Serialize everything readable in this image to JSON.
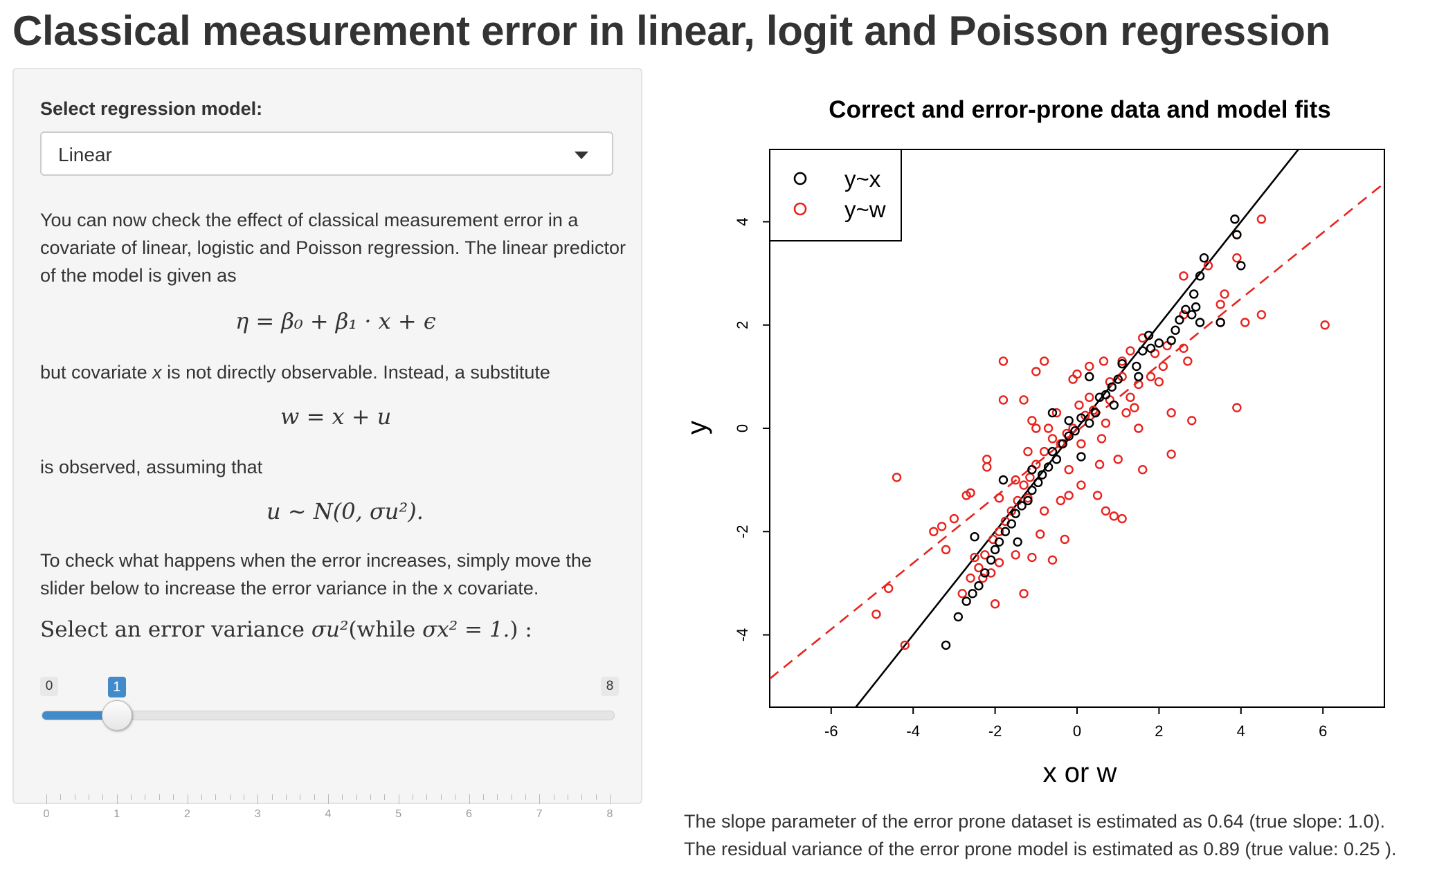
{
  "page": {
    "title": "Classical measurement error in linear, logit and Poisson regression"
  },
  "sidebar": {
    "model_label": "Select regression model:",
    "model_select": {
      "value": "Linear",
      "icon": "caret-down-icon"
    },
    "intro_text": "You can now check the effect of classical measurement error in a covariate of linear, logistic and Poisson regression. The linear predictor of the model is given as",
    "eq_predictor": "η = β₀ + β₁ · x + ϵ",
    "covariate_text_before": "but covariate ",
    "covariate_var": "x",
    "covariate_text_after": " is not directly observable. Instead, a substitute",
    "eq_substitute": "w = x + u",
    "observed_text": "is observed, assuming that",
    "eq_error_dist": "u ∼ N(0, σu²).",
    "slider_intro": "To check what happens when the error increases, simply move the slider below to increase the error variance in the x covariate.",
    "slider": {
      "label_prefix": "Select an error variance ",
      "label_sigma_u": "σu²",
      "label_middle": "(while ",
      "label_sigma_x": "σx² = 1.",
      "label_suffix": ") :",
      "min": 0,
      "max": 8,
      "value": 1,
      "min_label": "0",
      "max_label": "8",
      "value_label": "1",
      "grid_labels": [
        "0",
        "1",
        "2",
        "3",
        "4",
        "5",
        "6",
        "7",
        "8"
      ]
    }
  },
  "chart_data": {
    "type": "scatter",
    "title": "Correct and error-prone data and model fits",
    "xlabel": "x or w",
    "ylabel": "y",
    "xticks": [
      -6,
      -4,
      -2,
      0,
      2,
      4,
      6
    ],
    "yticks": [
      -4,
      -2,
      0,
      2,
      4
    ],
    "xlim": [
      -7.5,
      7.5
    ],
    "ylim": [
      -5.4,
      5.4
    ],
    "legend": {
      "placement": "top-left",
      "entries": [
        {
          "name": "y~x",
          "color": "#000000"
        },
        {
          "name": "y~w",
          "color": "#e8231e"
        }
      ]
    },
    "series": [
      {
        "name": "y~x",
        "color": "#000000",
        "marker": "open-circle",
        "fit": {
          "intercept": 0.0,
          "slope": 1.0,
          "line": "solid"
        },
        "points": [
          [
            3.85,
            4.05
          ],
          [
            3.9,
            3.75
          ],
          [
            4.0,
            3.15
          ],
          [
            3.1,
            3.3
          ],
          [
            3.0,
            2.95
          ],
          [
            2.85,
            2.6
          ],
          [
            2.9,
            2.35
          ],
          [
            2.8,
            2.2
          ],
          [
            3.0,
            2.05
          ],
          [
            2.65,
            2.3
          ],
          [
            2.4,
            1.9
          ],
          [
            2.3,
            1.7
          ],
          [
            2.0,
            1.65
          ],
          [
            1.75,
            1.8
          ],
          [
            1.6,
            1.5
          ],
          [
            1.45,
            1.2
          ],
          [
            1.1,
            1.25
          ],
          [
            1.0,
            0.95
          ],
          [
            0.85,
            0.8
          ],
          [
            0.7,
            0.65
          ],
          [
            0.55,
            0.6
          ],
          [
            0.45,
            0.3
          ],
          [
            0.3,
            0.1
          ],
          [
            0.1,
            0.2
          ],
          [
            -0.05,
            -0.05
          ],
          [
            -0.2,
            -0.15
          ],
          [
            -0.35,
            -0.3
          ],
          [
            -0.5,
            -0.6
          ],
          [
            -0.6,
            -0.45
          ],
          [
            -0.7,
            -0.75
          ],
          [
            -0.85,
            -0.9
          ],
          [
            -0.95,
            -1.05
          ],
          [
            -1.1,
            -1.2
          ],
          [
            -1.2,
            -1.4
          ],
          [
            -1.35,
            -1.5
          ],
          [
            -1.5,
            -1.65
          ],
          [
            -1.6,
            -1.85
          ],
          [
            -1.75,
            -2.0
          ],
          [
            -1.9,
            -2.2
          ],
          [
            -2.0,
            -2.35
          ],
          [
            -2.1,
            -2.55
          ],
          [
            -2.25,
            -2.8
          ],
          [
            -2.4,
            -3.05
          ],
          [
            -2.55,
            -3.2
          ],
          [
            -2.7,
            -3.35
          ],
          [
            -2.9,
            -3.65
          ],
          [
            -3.2,
            -4.2
          ],
          [
            0.3,
            1.0
          ],
          [
            -0.6,
            0.3
          ],
          [
            -1.1,
            -0.8
          ],
          [
            1.5,
            1.0
          ],
          [
            2.5,
            2.1
          ],
          [
            3.5,
            2.05
          ],
          [
            -2.5,
            -2.1
          ],
          [
            -1.8,
            -1.0
          ],
          [
            0.9,
            0.45
          ],
          [
            0.1,
            -0.55
          ],
          [
            1.8,
            1.55
          ],
          [
            -0.2,
            0.15
          ],
          [
            -1.45,
            -2.2
          ]
        ]
      },
      {
        "name": "y~w",
        "color": "#e8231e",
        "marker": "open-circle",
        "fit": {
          "intercept": -0.05,
          "slope": 0.64,
          "line": "dashed"
        },
        "points": [
          [
            4.5,
            4.05
          ],
          [
            3.9,
            3.75
          ],
          [
            3.9,
            3.3
          ],
          [
            3.2,
            3.15
          ],
          [
            2.6,
            2.95
          ],
          [
            3.6,
            2.6
          ],
          [
            3.5,
            2.4
          ],
          [
            2.6,
            2.2
          ],
          [
            3.5,
            2.05
          ],
          [
            4.1,
            2.05
          ],
          [
            4.5,
            2.2
          ],
          [
            6.05,
            2.0
          ],
          [
            3.9,
            0.4
          ],
          [
            2.8,
            0.15
          ],
          [
            2.3,
            0.3
          ],
          [
            2.3,
            -0.5
          ],
          [
            2.7,
            1.3
          ],
          [
            2.6,
            1.55
          ],
          [
            2.1,
            1.2
          ],
          [
            1.8,
            1.0
          ],
          [
            1.5,
            0.85
          ],
          [
            1.3,
            0.6
          ],
          [
            1.2,
            0.3
          ],
          [
            0.8,
            0.55
          ],
          [
            0.7,
            0.1
          ],
          [
            0.6,
            -0.2
          ],
          [
            0.4,
            0.35
          ],
          [
            0.2,
            0.25
          ],
          [
            0.05,
            0.45
          ],
          [
            -0.1,
            0.0
          ],
          [
            -0.25,
            -0.1
          ],
          [
            -0.4,
            -0.3
          ],
          [
            -0.6,
            -0.2
          ],
          [
            -0.8,
            -0.45
          ],
          [
            -1.0,
            -0.7
          ],
          [
            -1.15,
            -0.95
          ],
          [
            -1.3,
            -1.1
          ],
          [
            -1.45,
            -1.4
          ],
          [
            -1.6,
            -1.6
          ],
          [
            -1.75,
            -1.8
          ],
          [
            -1.9,
            -2.0
          ],
          [
            -2.05,
            -2.15
          ],
          [
            -2.25,
            -2.45
          ],
          [
            -2.4,
            -2.7
          ],
          [
            -2.6,
            -2.9
          ],
          [
            -2.8,
            -3.2
          ],
          [
            -3.3,
            -1.9
          ],
          [
            -3.2,
            -2.35
          ],
          [
            -3.5,
            -2.0
          ],
          [
            -3.0,
            -1.75
          ],
          [
            -2.7,
            -1.3
          ],
          [
            -2.6,
            -1.25
          ],
          [
            -2.2,
            -0.6
          ],
          [
            -2.2,
            -0.75
          ],
          [
            -1.9,
            -1.35
          ],
          [
            -1.5,
            -1.0
          ],
          [
            -1.2,
            -0.45
          ],
          [
            -1.0,
            0.0
          ],
          [
            -1.1,
            0.15
          ],
          [
            -0.7,
            0.0
          ],
          [
            -1.8,
            1.3
          ],
          [
            -1.8,
            0.55
          ],
          [
            -1.3,
            0.55
          ],
          [
            -1.0,
            1.1
          ],
          [
            -0.8,
            1.3
          ],
          [
            -0.1,
            0.95
          ],
          [
            0.0,
            1.05
          ],
          [
            0.3,
            1.2
          ],
          [
            0.65,
            1.3
          ],
          [
            1.1,
            1.3
          ],
          [
            1.3,
            1.5
          ],
          [
            1.6,
            1.75
          ],
          [
            1.9,
            1.45
          ],
          [
            -0.4,
            -1.4
          ],
          [
            -0.2,
            -1.3
          ],
          [
            0.1,
            -1.1
          ],
          [
            0.5,
            -1.3
          ],
          [
            0.7,
            -1.6
          ],
          [
            0.9,
            -1.7
          ],
          [
            1.1,
            -1.75
          ],
          [
            -0.8,
            -1.6
          ],
          [
            -0.9,
            -2.05
          ],
          [
            -0.3,
            -2.15
          ],
          [
            -0.6,
            -2.55
          ],
          [
            -1.1,
            -2.5
          ],
          [
            -1.3,
            -3.2
          ],
          [
            -2.0,
            -3.4
          ],
          [
            -2.3,
            -2.9
          ],
          [
            -4.4,
            -0.95
          ],
          [
            -4.6,
            -3.1
          ],
          [
            -4.9,
            -3.6
          ],
          [
            -4.2,
            -4.2
          ],
          [
            1.5,
            0.0
          ],
          [
            1.6,
            -0.8
          ],
          [
            1.0,
            -0.6
          ],
          [
            0.55,
            -0.7
          ],
          [
            0.1,
            -0.3
          ],
          [
            -0.2,
            -0.8
          ],
          [
            1.4,
            0.4
          ],
          [
            1.1,
            1.0
          ],
          [
            0.3,
            0.6
          ],
          [
            -0.5,
            0.3
          ],
          [
            -1.2,
            -1.35
          ],
          [
            -1.5,
            -2.45
          ],
          [
            -1.9,
            -2.6
          ],
          [
            -2.5,
            -2.5
          ],
          [
            -2.1,
            -2.8
          ],
          [
            2.0,
            0.9
          ],
          [
            2.2,
            1.6
          ],
          [
            0.8,
            0.9
          ]
        ]
      }
    ]
  },
  "footer": {
    "line1": "The slope parameter of the error prone dataset is estimated as 0.64 (true slope: 1.0).",
    "line2": "The residual variance of the error prone model is estimated as 0.89 (true value: 0.25 )."
  }
}
